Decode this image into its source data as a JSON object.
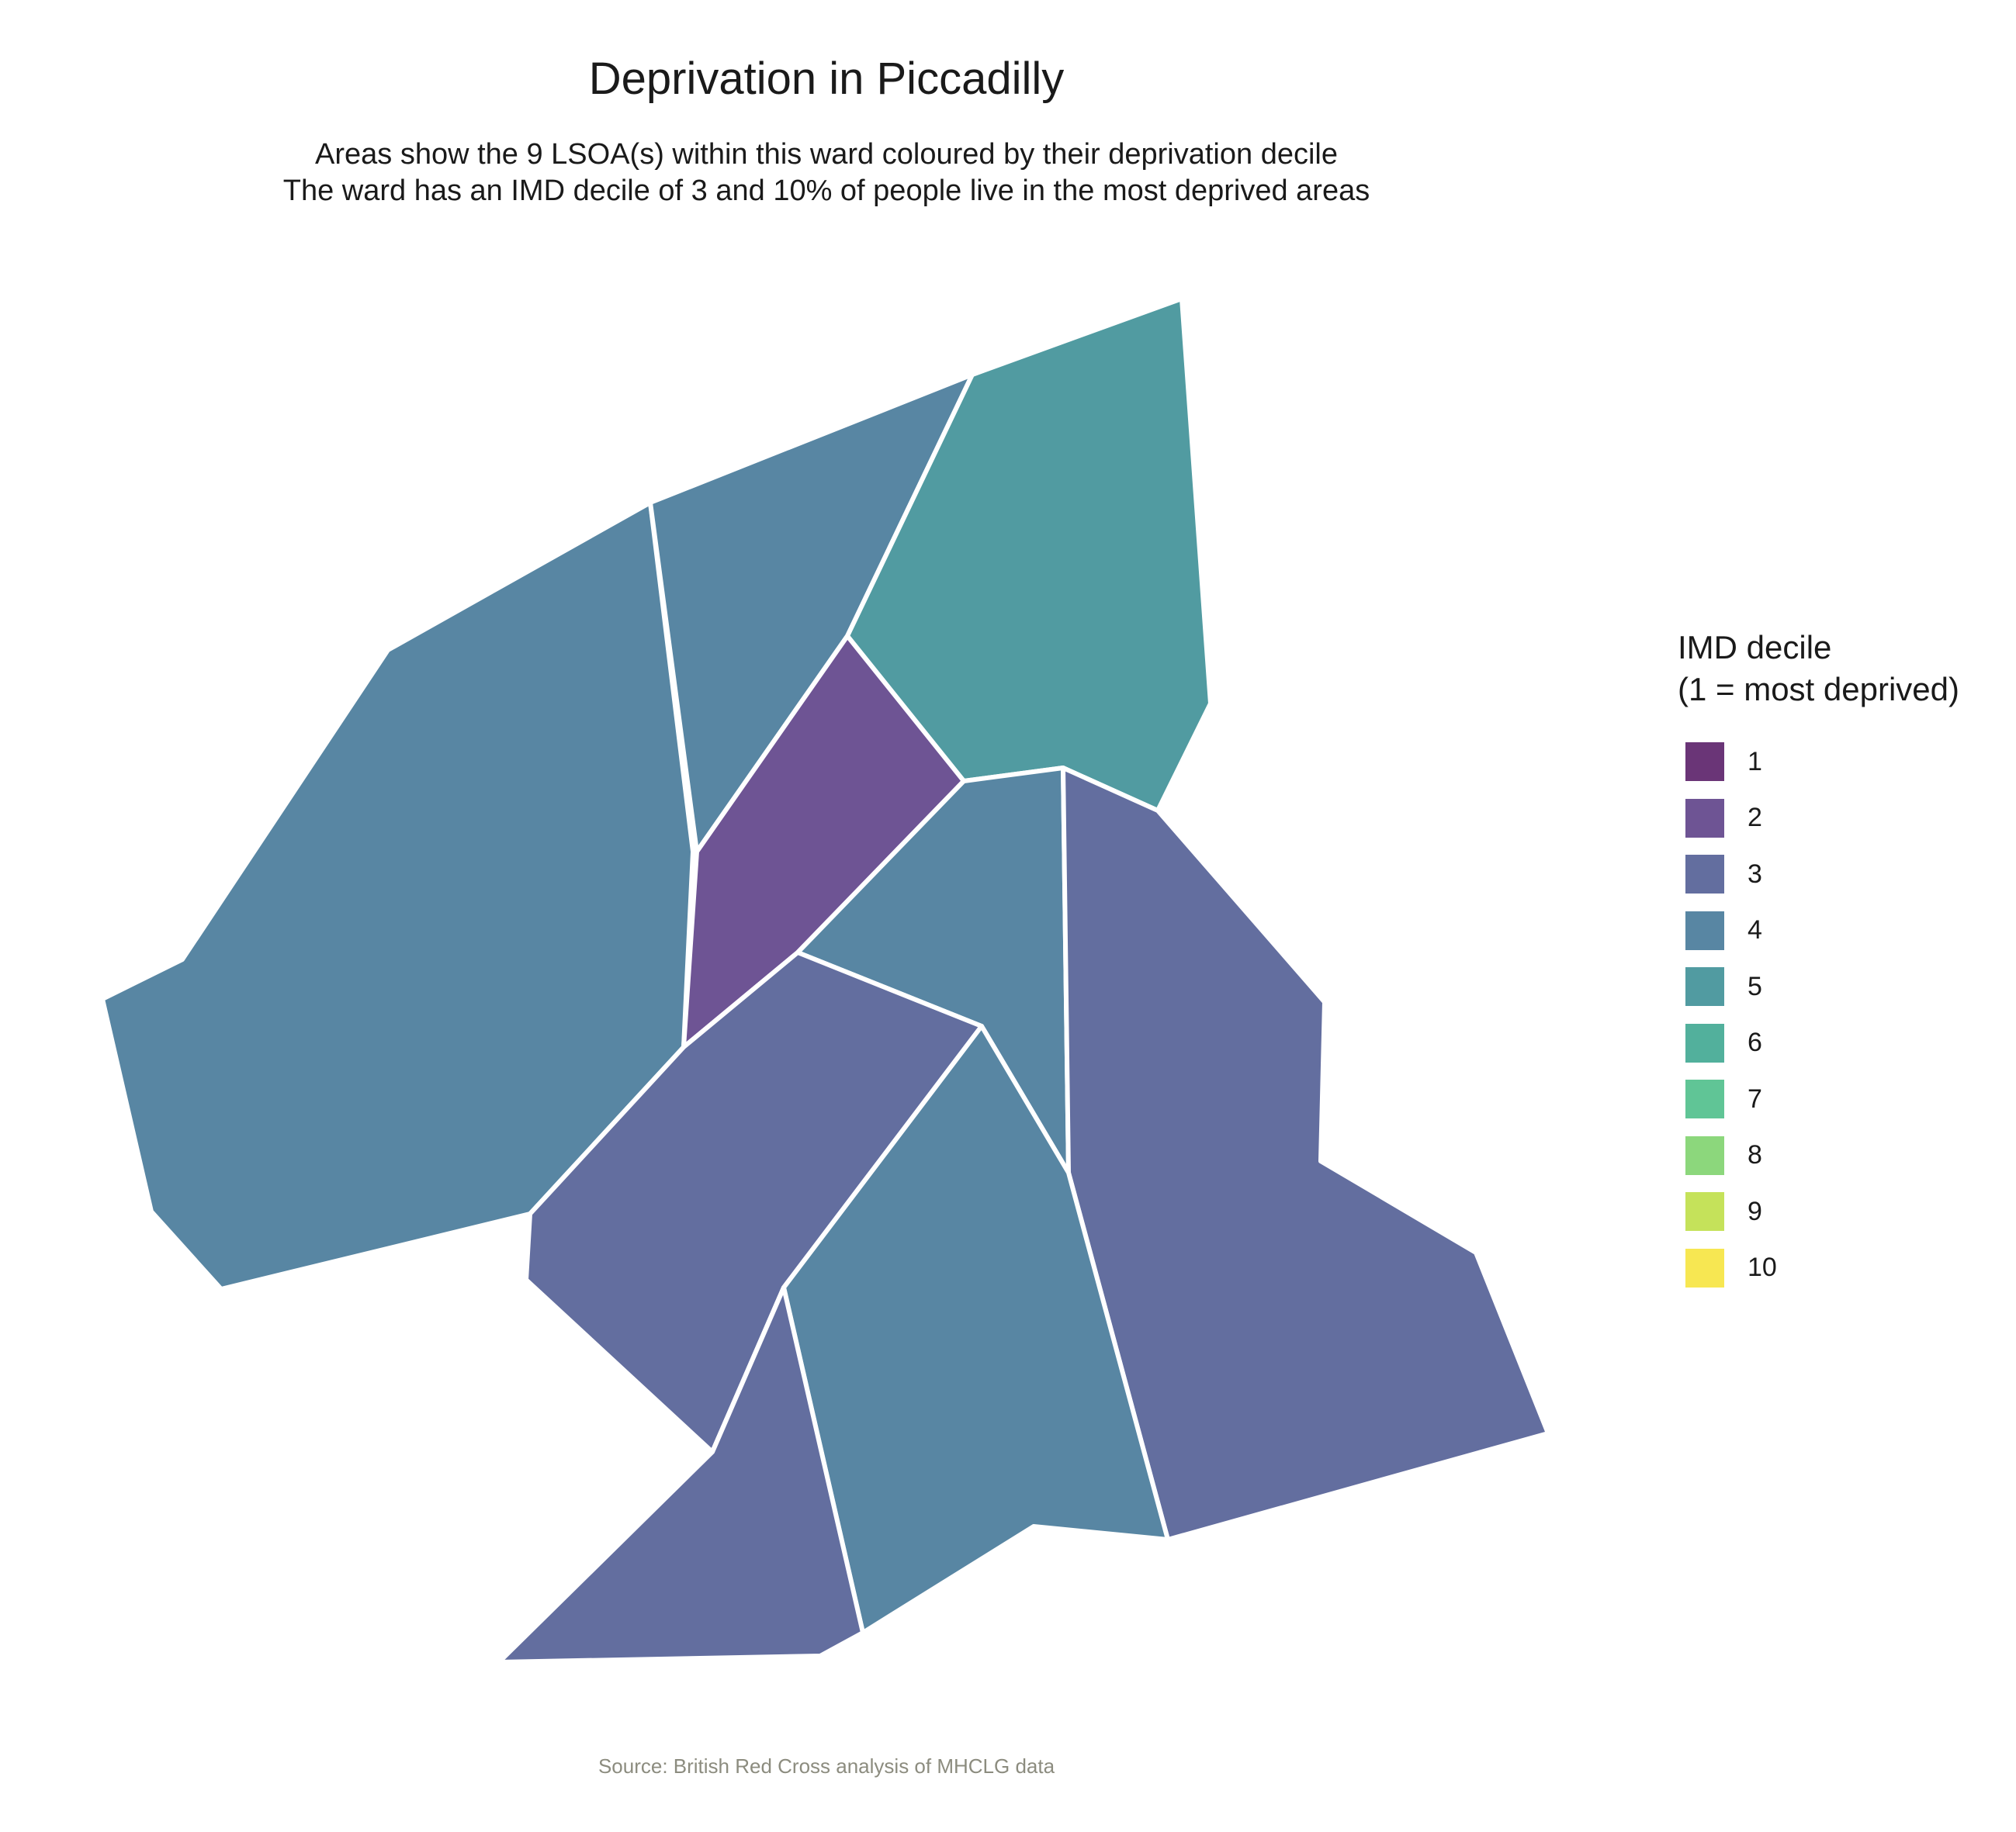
{
  "title": "Deprivation in Piccadilly",
  "subtitle_lines": [
    "Areas show the 9 LSOA(s) within this ward coloured by their deprivation decile",
    "The ward has an IMD decile of 3 and 10% of people live in the most deprived areas"
  ],
  "legend": {
    "title_lines": [
      "IMD decile",
      "(1 = most deprived)"
    ],
    "items": [
      {
        "label": "1",
        "color": "#6a3577"
      },
      {
        "label": "2",
        "color": "#6e5494"
      },
      {
        "label": "3",
        "color": "#636e9f"
      },
      {
        "label": "4",
        "color": "#5886a3"
      },
      {
        "label": "5",
        "color": "#519ba1"
      },
      {
        "label": "6",
        "color": "#52b09c"
      },
      {
        "label": "7",
        "color": "#60c596"
      },
      {
        "label": "8",
        "color": "#8cd77c"
      },
      {
        "label": "9",
        "color": "#c5e25a"
      },
      {
        "label": "10",
        "color": "#f7e752"
      }
    ]
  },
  "areas": [
    {
      "name": "west-large",
      "imd_decile": 4
    },
    {
      "name": "north-middle",
      "imd_decile": 4
    },
    {
      "name": "north-east",
      "imd_decile": 5
    },
    {
      "name": "central",
      "imd_decile": 2
    },
    {
      "name": "centre-east",
      "imd_decile": 4
    },
    {
      "name": "east-large",
      "imd_decile": 3
    },
    {
      "name": "south-west",
      "imd_decile": 3
    },
    {
      "name": "south-middle",
      "imd_decile": 4
    },
    {
      "name": "south-tip",
      "imd_decile": 3
    }
  ],
  "caption": "Source: British Red Cross analysis of MHCLG data"
}
